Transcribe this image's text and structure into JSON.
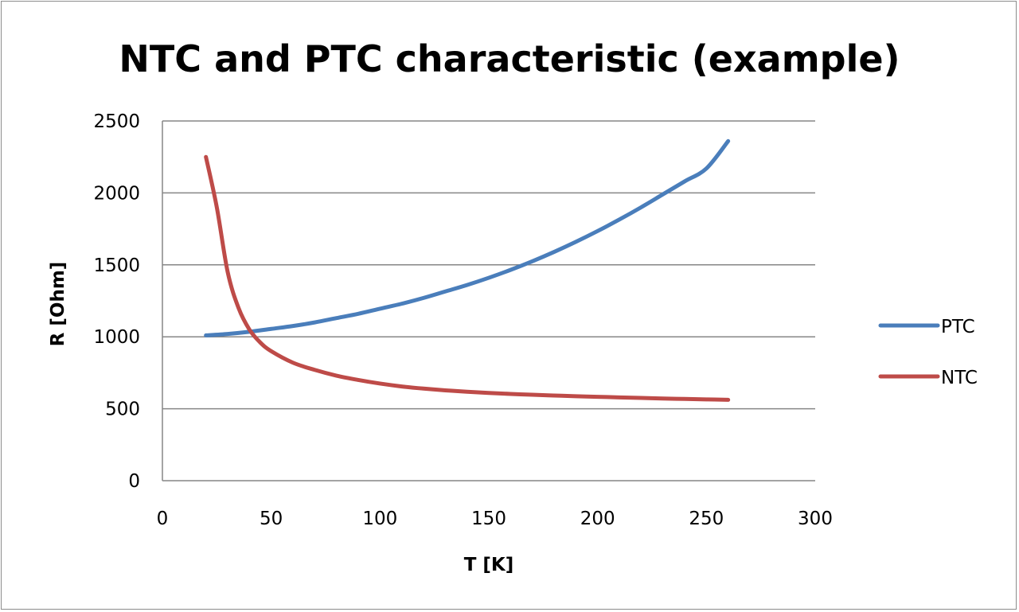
{
  "chart_data": {
    "type": "line",
    "title": "NTC and PTC characteristic (example)",
    "xlabel": "T [K]",
    "ylabel": "R [Ohm]",
    "xlim": [
      0,
      300
    ],
    "ylim": [
      0,
      2500
    ],
    "xticks": [
      "0",
      "50",
      "100",
      "150",
      "200",
      "250",
      "300"
    ],
    "yticks": [
      "0",
      "500",
      "1000",
      "1500",
      "2000",
      "2500"
    ],
    "grid": "horizontal",
    "legend": "right",
    "series": [
      {
        "name": "PTC",
        "color": "#4a7ebb",
        "points": [
          [
            20,
            1010
          ],
          [
            30,
            1020
          ],
          [
            40,
            1035
          ],
          [
            50,
            1055
          ],
          [
            60,
            1075
          ],
          [
            70,
            1100
          ],
          [
            80,
            1130
          ],
          [
            90,
            1160
          ],
          [
            100,
            1195
          ],
          [
            110,
            1230
          ],
          [
            120,
            1270
          ],
          [
            130,
            1315
          ],
          [
            140,
            1360
          ],
          [
            150,
            1410
          ],
          [
            160,
            1465
          ],
          [
            170,
            1525
          ],
          [
            180,
            1590
          ],
          [
            190,
            1660
          ],
          [
            200,
            1735
          ],
          [
            210,
            1815
          ],
          [
            220,
            1900
          ],
          [
            230,
            1990
          ],
          [
            240,
            2080
          ],
          [
            250,
            2170
          ],
          [
            260,
            2360
          ]
        ]
      },
      {
        "name": "NTC",
        "color": "#be4b48",
        "points": [
          [
            20,
            2250
          ],
          [
            25,
            1900
          ],
          [
            30,
            1450
          ],
          [
            35,
            1200
          ],
          [
            40,
            1050
          ],
          [
            45,
            960
          ],
          [
            50,
            900
          ],
          [
            60,
            820
          ],
          [
            70,
            770
          ],
          [
            80,
            730
          ],
          [
            90,
            700
          ],
          [
            100,
            675
          ],
          [
            110,
            655
          ],
          [
            120,
            640
          ],
          [
            130,
            628
          ],
          [
            140,
            618
          ],
          [
            150,
            610
          ],
          [
            160,
            603
          ],
          [
            170,
            597
          ],
          [
            180,
            592
          ],
          [
            190,
            587
          ],
          [
            200,
            583
          ],
          [
            210,
            579
          ],
          [
            220,
            575
          ],
          [
            230,
            571
          ],
          [
            240,
            568
          ],
          [
            250,
            565
          ],
          [
            260,
            562
          ]
        ]
      }
    ]
  }
}
